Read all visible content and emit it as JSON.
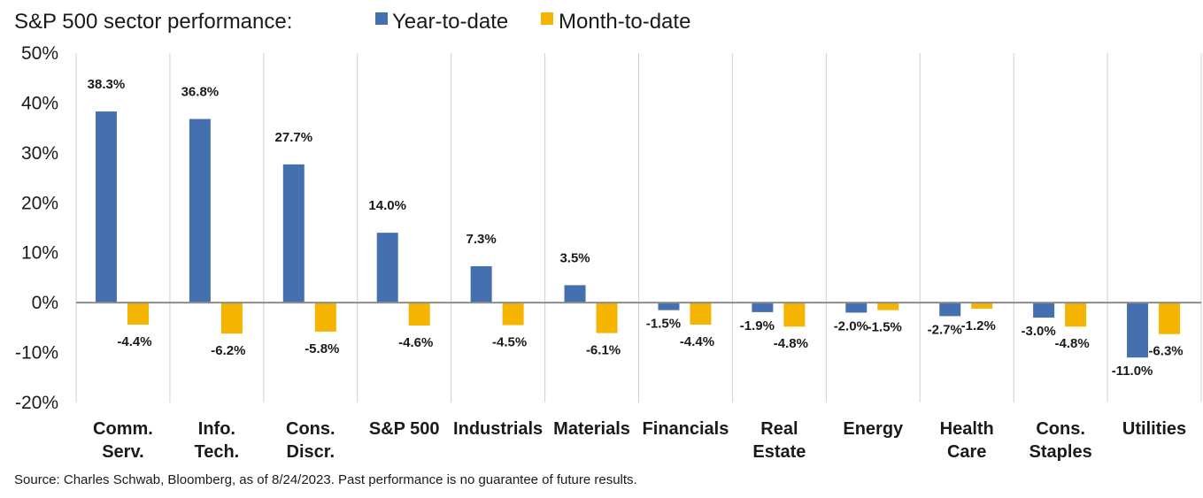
{
  "chart_data": {
    "type": "bar",
    "title": "S&P 500 sector performance:",
    "categories": [
      [
        "Comm.",
        "Serv."
      ],
      [
        "Info.",
        "Tech."
      ],
      [
        "Cons.",
        "Discr."
      ],
      [
        "S&P 500"
      ],
      [
        "Industrials"
      ],
      [
        "Materials"
      ],
      [
        "Financials"
      ],
      [
        "Real",
        "Estate"
      ],
      [
        "Energy"
      ],
      [
        "Health",
        "Care"
      ],
      [
        "Cons.",
        "Staples"
      ],
      [
        "Utilities"
      ]
    ],
    "series": [
      {
        "name": "Year-to-date",
        "color": "#4570b0",
        "values": [
          38.3,
          36.8,
          27.7,
          14.0,
          7.3,
          3.5,
          -1.5,
          -1.9,
          -2.0,
          -2.7,
          -3.0,
          -11.0
        ],
        "labels": [
          "38.3%",
          "36.8%",
          "27.7%",
          "14.0%",
          "7.3%",
          "3.5%",
          "-1.5%",
          "-1.9%",
          "-2.0%",
          "-2.7%",
          "-3.0%",
          "-11.0%"
        ]
      },
      {
        "name": "Month-to-date",
        "color": "#f5b400",
        "values": [
          -4.4,
          -6.2,
          -5.8,
          -4.6,
          -4.5,
          -6.1,
          -4.4,
          -4.8,
          -1.5,
          -1.2,
          -4.8,
          -6.3
        ],
        "labels": [
          "-4.4%",
          "-6.2%",
          "-5.8%",
          "-4.6%",
          "-4.5%",
          "-6.1%",
          "-4.4%",
          "-4.8%",
          "-1.5%",
          "-1.2%",
          "-4.8%",
          "-6.3%"
        ]
      }
    ],
    "ylim": [
      -20,
      50
    ],
    "yticks": [
      50,
      40,
      30,
      20,
      10,
      0,
      -10,
      -20
    ],
    "ytick_labels": [
      "50%",
      "40%",
      "30%",
      "20%",
      "10%",
      "0%",
      "-10%",
      "-20%"
    ],
    "xlabel": "",
    "ylabel": "",
    "legend": "top",
    "grid": "vertical category separators"
  },
  "footer": {
    "source": "Source: Charles Schwab, Bloomberg, as of 8/24/2023.  Past performance is no guarantee of future results."
  }
}
